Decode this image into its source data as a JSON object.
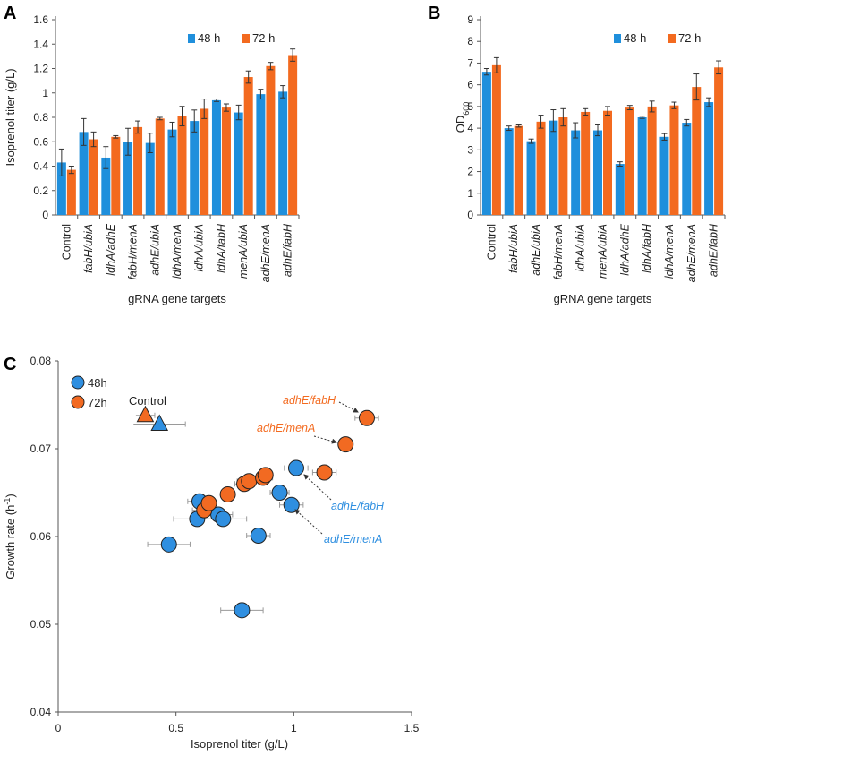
{
  "colors": {
    "h48": "#1f8fdc",
    "h72": "#f36a1f",
    "h48_scatter": "#2f8fe0",
    "h72_scatter": "#f26a22"
  },
  "chart_data": [
    {
      "panel": "A",
      "type": "bar",
      "xlabel": "gRNA gene targets",
      "ylabel": "Isoprenol titer (g/L)",
      "ylim": [
        0,
        1.6
      ],
      "yticks": [
        "0",
        "0.2",
        "0.4",
        "0.6",
        "0.8",
        "1",
        "1.2",
        "1.4",
        "1.6"
      ],
      "legend_position": "top-center",
      "categories": [
        {
          "pre": "",
          "italic": "",
          "post": "Control"
        },
        {
          "pre": "",
          "italic": "fabH/ubiA",
          "post": ""
        },
        {
          "pre": "",
          "italic": "ldhA/adhE",
          "post": ""
        },
        {
          "pre": "",
          "italic": "fabH/menA",
          "post": ""
        },
        {
          "pre": "",
          "italic": "adhE/ubiA",
          "post": ""
        },
        {
          "pre": "",
          "italic": "ldhA/menA",
          "post": ""
        },
        {
          "pre": "",
          "italic": "ldhA/ubiA",
          "post": ""
        },
        {
          "pre": "",
          "italic": "ldhA/fabH",
          "post": ""
        },
        {
          "pre": "",
          "italic": "menA/ubiA",
          "post": ""
        },
        {
          "pre": "",
          "italic": "adhE/menA",
          "post": ""
        },
        {
          "pre": "",
          "italic": "adhE/fabH",
          "post": ""
        }
      ],
      "series": [
        {
          "name": "48 h",
          "values": [
            0.43,
            0.68,
            0.47,
            0.6,
            0.59,
            0.7,
            0.77,
            0.94,
            0.84,
            0.99,
            1.01
          ],
          "errors": [
            0.11,
            0.11,
            0.09,
            0.11,
            0.08,
            0.06,
            0.09,
            0.01,
            0.06,
            0.04,
            0.05
          ]
        },
        {
          "name": "72 h",
          "values": [
            0.37,
            0.62,
            0.64,
            0.72,
            0.79,
            0.81,
            0.87,
            0.88,
            1.13,
            1.22,
            1.31
          ],
          "errors": [
            0.03,
            0.06,
            0.01,
            0.05,
            0.01,
            0.08,
            0.08,
            0.03,
            0.05,
            0.03,
            0.05
          ]
        }
      ]
    },
    {
      "panel": "B",
      "type": "bar",
      "xlabel": "gRNA gene targets",
      "ylabel": "OD",
      "ylabel_sub": "600",
      "ylim": [
        0,
        9
      ],
      "yticks": [
        "0",
        "1",
        "2",
        "3",
        "4",
        "5",
        "6",
        "7",
        "8",
        "9"
      ],
      "legend_position": "top-center",
      "categories": [
        {
          "pre": "",
          "italic": "",
          "post": "Control"
        },
        {
          "pre": "",
          "italic": "fabH/ubiA",
          "post": ""
        },
        {
          "pre": "",
          "italic": "adhE/ubiA",
          "post": ""
        },
        {
          "pre": "",
          "italic": "fabH/menA",
          "post": ""
        },
        {
          "pre": "",
          "italic": "ldhA/ubiA",
          "post": ""
        },
        {
          "pre": "",
          "italic": "menA/ubiA",
          "post": ""
        },
        {
          "pre": "",
          "italic": "ldhA/adhE",
          "post": ""
        },
        {
          "pre": "",
          "italic": "ldhA/fabH",
          "post": ""
        },
        {
          "pre": "",
          "italic": "ldhA/menA",
          "post": ""
        },
        {
          "pre": "",
          "italic": "adhE/menA",
          "post": ""
        },
        {
          "pre": "",
          "italic": "adhE/fabH",
          "post": ""
        }
      ],
      "series": [
        {
          "name": "48 h",
          "values": [
            6.6,
            4.0,
            3.4,
            4.35,
            3.9,
            3.9,
            2.35,
            4.5,
            3.6,
            4.25,
            5.2
          ],
          "errors": [
            0.15,
            0.1,
            0.1,
            0.5,
            0.35,
            0.25,
            0.1,
            0.05,
            0.15,
            0.15,
            0.2
          ]
        },
        {
          "name": "72 h",
          "values": [
            6.9,
            4.1,
            4.3,
            4.5,
            4.75,
            4.8,
            4.95,
            5.0,
            5.05,
            5.9,
            6.8
          ],
          "errors": [
            0.35,
            0.05,
            0.3,
            0.4,
            0.15,
            0.2,
            0.1,
            0.25,
            0.15,
            0.6,
            0.3
          ]
        }
      ]
    },
    {
      "panel": "C",
      "type": "scatter",
      "xlabel": "Isoprenol titer (g/L)",
      "ylabel_main": "Growth rate (h",
      "ylabel_sup": "-1",
      "ylabel_end": ")",
      "xlim": [
        0,
        1.5
      ],
      "ylim": [
        0.04,
        0.08
      ],
      "xticks": [
        {
          "v": 0,
          "label": "0"
        },
        {
          "v": 0.5,
          "label": "0.5"
        },
        {
          "v": 1,
          "label": "1"
        },
        {
          "v": 1.5,
          "label": "1.5"
        }
      ],
      "yticks": [
        {
          "v": 0.04,
          "label": "0.04"
        },
        {
          "v": 0.05,
          "label": "0.05"
        },
        {
          "v": 0.06,
          "label": "0.06"
        },
        {
          "v": 0.07,
          "label": "0.07"
        },
        {
          "v": 0.08,
          "label": "0.08"
        }
      ],
      "legend_position": "top-left",
      "series": [
        {
          "name": "48h",
          "points": [
            {
              "x": 0.6,
              "y": 0.064,
              "xerr": 0.05
            },
            {
              "x": 0.59,
              "y": 0.062,
              "xerr": 0.1
            },
            {
              "x": 0.68,
              "y": 0.0625,
              "xerr": 0.06
            },
            {
              "x": 0.7,
              "y": 0.062,
              "xerr": 0.1
            },
            {
              "x": 0.47,
              "y": 0.0591,
              "xerr": 0.09
            },
            {
              "x": 0.85,
              "y": 0.0601,
              "xerr": 0.05
            },
            {
              "x": 0.78,
              "y": 0.0516,
              "xerr": 0.09
            },
            {
              "x": 0.94,
              "y": 0.065,
              "xerr": 0.04
            },
            {
              "x": 0.99,
              "y": 0.0636,
              "xerr": 0.05
            },
            {
              "x": 1.01,
              "y": 0.0678,
              "xerr": 0.05
            }
          ],
          "control": {
            "x": 0.43,
            "y": 0.0728,
            "xerr": 0.11
          }
        },
        {
          "name": "72h",
          "points": [
            {
              "x": 0.62,
              "y": 0.063,
              "xerr": 0.05
            },
            {
              "x": 0.64,
              "y": 0.0638,
              "xerr": 0.02
            },
            {
              "x": 0.72,
              "y": 0.0648,
              "xerr": 0.02
            },
            {
              "x": 0.79,
              "y": 0.066,
              "xerr": 0.04
            },
            {
              "x": 0.81,
              "y": 0.0663,
              "xerr": 0.05
            },
            {
              "x": 0.87,
              "y": 0.0667,
              "xerr": 0.04
            },
            {
              "x": 0.88,
              "y": 0.067,
              "xerr": 0.03
            },
            {
              "x": 1.13,
              "y": 0.0673,
              "xerr": 0.05
            },
            {
              "x": 1.22,
              "y": 0.0705,
              "xerr": 0.03
            },
            {
              "x": 1.31,
              "y": 0.0735,
              "xerr": 0.05
            }
          ],
          "control": {
            "x": 0.37,
            "y": 0.0738,
            "xerr": 0.04
          }
        }
      ],
      "annotations": [
        {
          "text": "Control",
          "series": null
        },
        {
          "text": "adhE/fabH",
          "series": "72h"
        },
        {
          "text": "adhE/menA",
          "series": "72h"
        },
        {
          "text": "adhE/fabH",
          "series": "48h"
        },
        {
          "text": "adhE/menA",
          "series": "48h"
        }
      ]
    }
  ]
}
